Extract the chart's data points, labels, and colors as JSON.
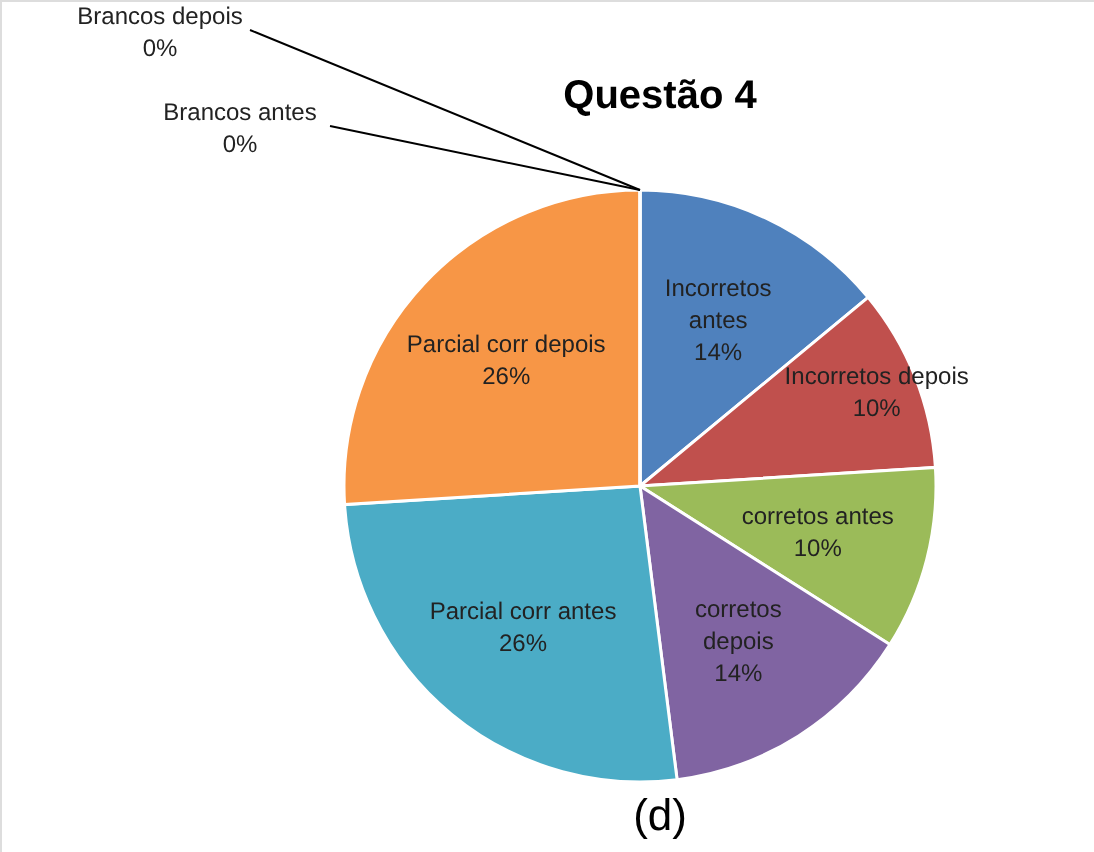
{
  "chart_data": {
    "type": "pie",
    "title": "Questão 4",
    "categories": [
      "Incorretos antes",
      "Incorretos depois",
      "corretos antes",
      "corretos depois",
      "Parcial corr antes",
      "Parcial corr depois",
      "Brancos antes",
      "Brancos depois"
    ],
    "values": [
      14,
      10,
      10,
      14,
      26,
      26,
      0,
      0
    ],
    "value_labels": [
      "14%",
      "10%",
      "10%",
      "14%",
      "26%",
      "26%",
      "0%",
      "0%"
    ],
    "colors": [
      "#4f81bd",
      "#c0504d",
      "#9bbb59",
      "#8064a2",
      "#4bacc6",
      "#f79646",
      "#2c4d75",
      "#772c2a"
    ],
    "annotations": [
      "(d)"
    ]
  }
}
